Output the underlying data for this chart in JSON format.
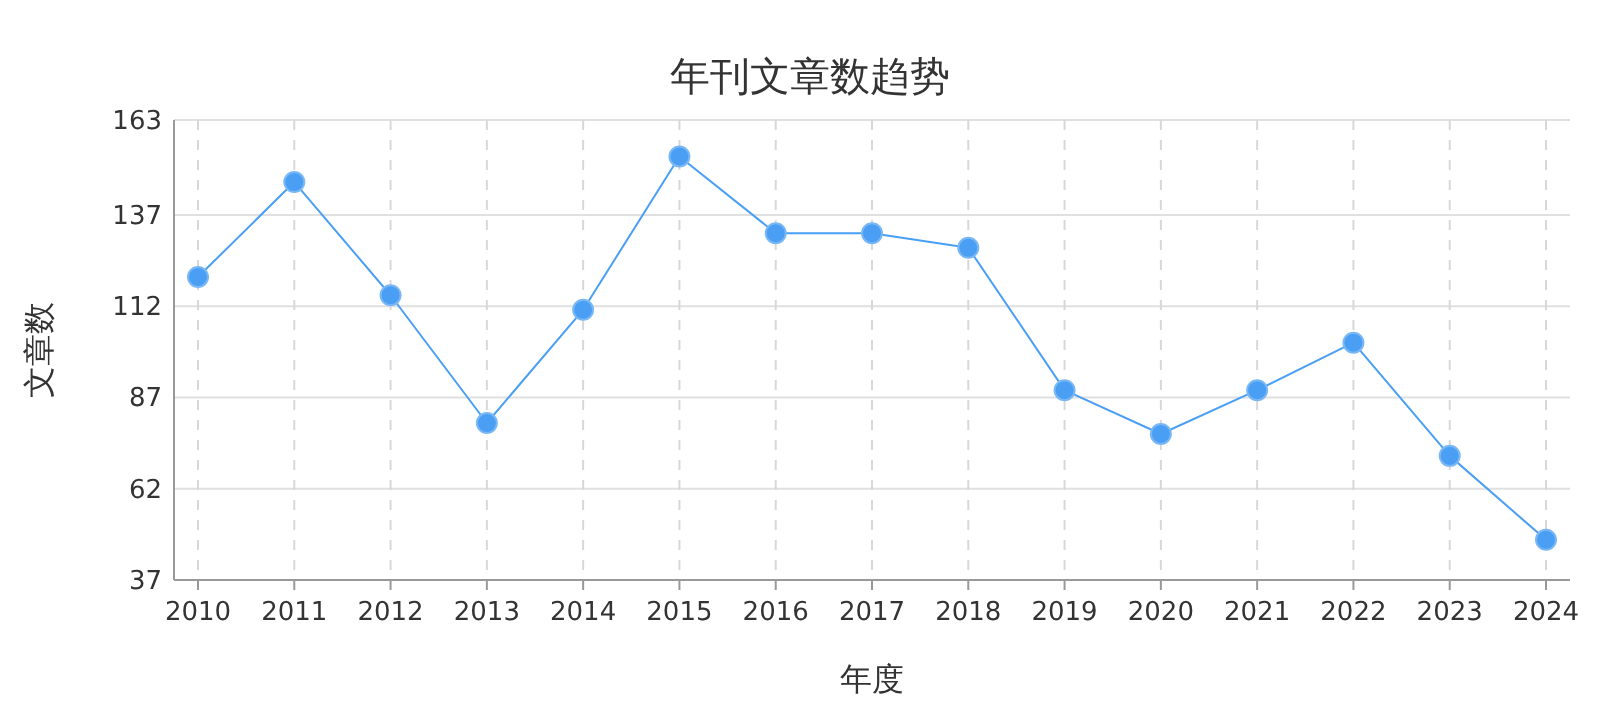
{
  "chart_data": {
    "type": "line",
    "title": "年刊文章数趋势",
    "xlabel": "年度",
    "ylabel": "文章数",
    "categories": [
      "2010",
      "2011",
      "2012",
      "2013",
      "2014",
      "2015",
      "2016",
      "2017",
      "2018",
      "2019",
      "2020",
      "2021",
      "2022",
      "2023",
      "2024"
    ],
    "series": [
      {
        "color": "#4a9ff5",
        "values": [
          120,
          146,
          115,
          80,
          111,
          153,
          132,
          132,
          128,
          89,
          77,
          89,
          102,
          71,
          48
        ]
      }
    ],
    "ylim": [
      37,
      163
    ],
    "yticks": [
      37,
      62,
      87,
      112,
      137,
      163
    ],
    "grid": true,
    "marker": "circle",
    "line_style": "solid"
  }
}
